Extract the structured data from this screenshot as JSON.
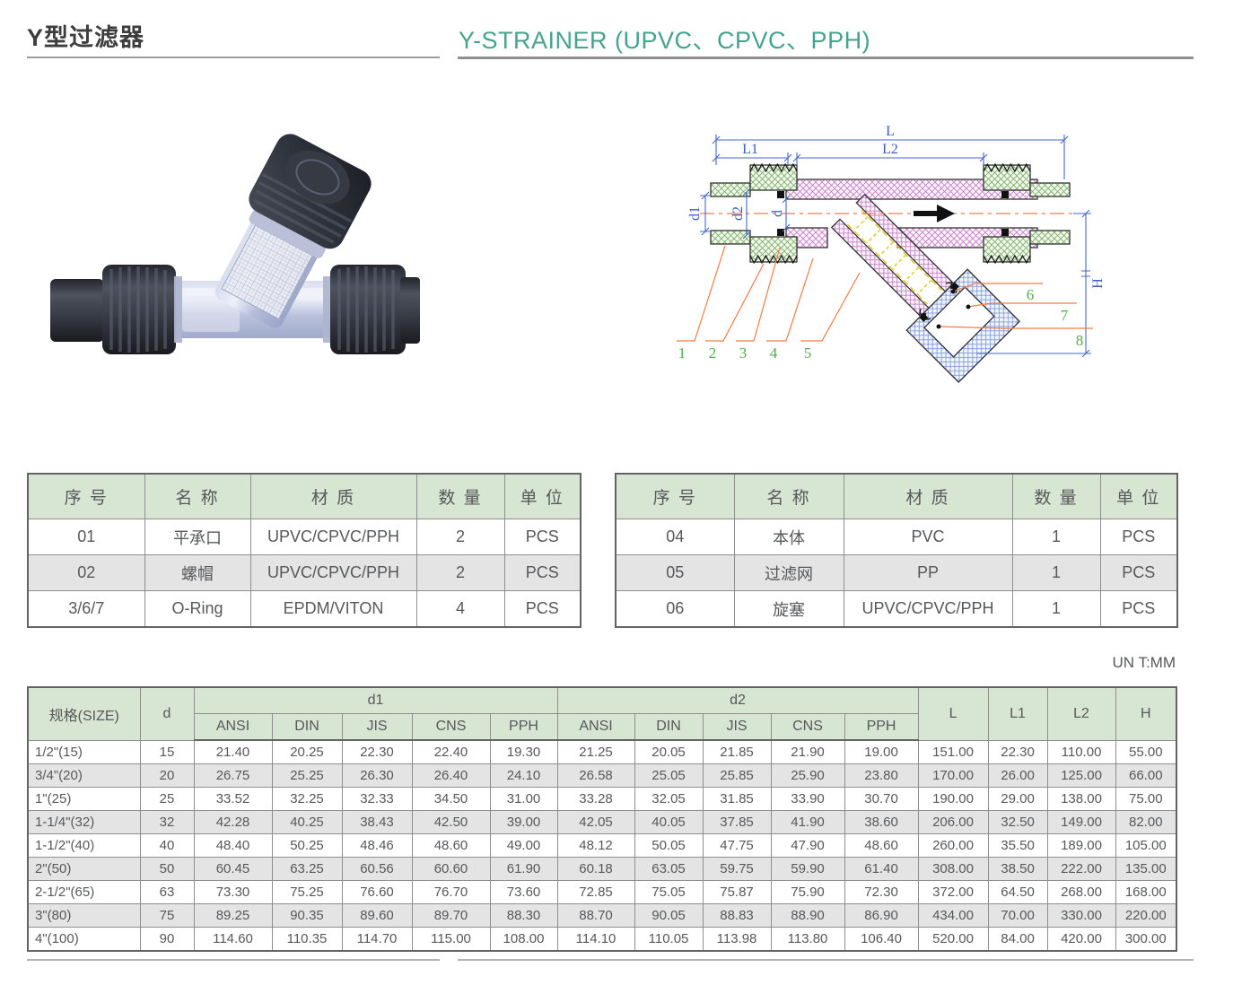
{
  "page": {
    "title_zh": "Y型过滤器",
    "title_en": "Y-STRAINER (UPVC、CPVC、PPH)",
    "unit_note": "UN T:MM"
  },
  "colors": {
    "accent_teal": "#45a38e",
    "table_header_green": "#d7e6d2",
    "row_alt_gray": "#e4e4e4",
    "dim_line_blue": "#4468cf",
    "leader_orange": "#ef7d45",
    "callout_green": "#53ad4a",
    "hatch_purple": "#c478c4",
    "hatch_green": "#79ad61",
    "hatch_blue": "#7b97db",
    "screen_yellow": "#e3cf35",
    "centerline_red": "#ef7d56"
  },
  "diagram": {
    "dims": {
      "L": "L",
      "L1": "L1",
      "L2": "L2",
      "d1": "d1",
      "d2": "d2",
      "d": "d",
      "H": "H"
    },
    "callouts": [
      "1",
      "2",
      "3",
      "4",
      "5",
      "6",
      "7",
      "8"
    ]
  },
  "parts_table_left": {
    "headers": [
      "序 号",
      "名 称",
      "材 质",
      "数 量",
      "单 位"
    ],
    "rows": [
      [
        "01",
        "平承口",
        "UPVC/CPVC/PPH",
        "2",
        "PCS"
      ],
      [
        "02",
        "螺帽",
        "UPVC/CPVC/PPH",
        "2",
        "PCS"
      ],
      [
        "3/6/7",
        "O-Ring",
        "EPDM/VITON",
        "4",
        "PCS"
      ]
    ]
  },
  "parts_table_right": {
    "headers": [
      "序 号",
      "名 称",
      "材 质",
      "数 量",
      "单 位"
    ],
    "rows": [
      [
        "04",
        "本体",
        "PVC",
        "1",
        "PCS"
      ],
      [
        "05",
        "过滤网",
        "PP",
        "1",
        "PCS"
      ],
      [
        "06",
        "旋塞",
        "UPVC/CPVC/PPH",
        "1",
        "PCS"
      ]
    ]
  },
  "dimensions_table": {
    "col_size": "规格(SIZE)",
    "col_d": "d",
    "group_d1": "d1",
    "group_d2": "d2",
    "standards": [
      "ANSI",
      "DIN",
      "JIS",
      "CNS",
      "PPH"
    ],
    "col_L": "L",
    "col_L1": "L1",
    "col_L2": "L2",
    "col_H": "H",
    "rows": [
      [
        "1/2\"(15)",
        "15",
        "21.40",
        "20.25",
        "22.30",
        "22.40",
        "19.30",
        "21.25",
        "20.05",
        "21.85",
        "21.90",
        "19.00",
        "151.00",
        "22.30",
        "110.00",
        "55.00"
      ],
      [
        "3/4\"(20)",
        "20",
        "26.75",
        "25.25",
        "26.30",
        "26.40",
        "24.10",
        "26.58",
        "25.05",
        "25.85",
        "25.90",
        "23.80",
        "170.00",
        "26.00",
        "125.00",
        "66.00"
      ],
      [
        "1\"(25)",
        "25",
        "33.52",
        "32.25",
        "32.33",
        "34.50",
        "31.00",
        "33.28",
        "32.05",
        "31.85",
        "33.90",
        "30.70",
        "190.00",
        "29.00",
        "138.00",
        "75.00"
      ],
      [
        "1-1/4\"(32)",
        "32",
        "42.28",
        "40.25",
        "38.43",
        "42.50",
        "39.00",
        "42.05",
        "40.05",
        "37.85",
        "41.90",
        "38.60",
        "206.00",
        "32.50",
        "149.00",
        "82.00"
      ],
      [
        "1-1/2\"(40)",
        "40",
        "48.40",
        "50.25",
        "48.46",
        "48.60",
        "49.00",
        "48.12",
        "50.05",
        "47.75",
        "47.90",
        "48.60",
        "260.00",
        "35.50",
        "189.00",
        "105.00"
      ],
      [
        "2\"(50)",
        "50",
        "60.45",
        "63.25",
        "60.56",
        "60.60",
        "61.90",
        "60.18",
        "63.05",
        "59.75",
        "59.90",
        "61.40",
        "308.00",
        "38.50",
        "222.00",
        "135.00"
      ],
      [
        "2-1/2\"(65)",
        "63",
        "73.30",
        "75.25",
        "76.60",
        "76.70",
        "73.60",
        "72.85",
        "75.05",
        "75.87",
        "75.90",
        "72.30",
        "372.00",
        "64.50",
        "268.00",
        "168.00"
      ],
      [
        "3\"(80)",
        "75",
        "89.25",
        "90.35",
        "89.60",
        "89.70",
        "88.30",
        "88.70",
        "90.05",
        "88.83",
        "88.90",
        "86.90",
        "434.00",
        "70.00",
        "330.00",
        "220.00"
      ],
      [
        "4\"(100)",
        "90",
        "114.60",
        "110.35",
        "114.70",
        "115.00",
        "108.00",
        "114.10",
        "110.05",
        "113.98",
        "113.80",
        "106.40",
        "520.00",
        "84.00",
        "420.00",
        "300.00"
      ]
    ]
  }
}
